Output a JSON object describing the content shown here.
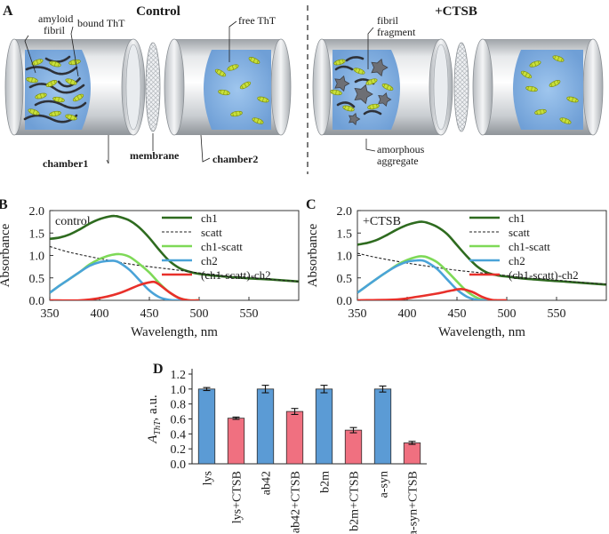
{
  "panelA": {
    "letter": "A",
    "control_title": "Control",
    "ctsb_title": "+CTSB",
    "labels": {
      "amyloid": "amyloid",
      "fibril": "fibril",
      "bound_tht": "bound ThT",
      "free_tht": "free ThT",
      "chamber1": "chamber1",
      "membrane": "membrane",
      "chamber2": "chamber2",
      "fibril2": "fibril",
      "fragment": "fragment",
      "amorphous": "amorphous",
      "aggregate": "aggregate"
    },
    "colors": {
      "liquid": "#8db8e8",
      "tht": "#c8e03a",
      "fibril": "#2e3138",
      "aggregate": "#6d6f75"
    }
  },
  "chart_data": [
    {
      "panel": "B",
      "type": "line",
      "annotation": "control",
      "xlabel": "Wavelength, nm",
      "ylabel": "Absorbance",
      "xlim": [
        350,
        600
      ],
      "ylim": [
        0,
        2.0
      ],
      "xticks": [
        "350",
        "400",
        "450",
        "500",
        "550"
      ],
      "yticks": [
        "0.0",
        "0.5",
        "1.0",
        "1.5",
        "2.0"
      ],
      "legend": [
        "ch1",
        "scatt",
        "ch1-scatt",
        "ch2",
        "(ch1-scatt)-ch2"
      ],
      "series": [
        {
          "name": "ch1",
          "color": "#2e6b1f",
          "x": [
            350,
            360,
            370,
            380,
            390,
            400,
            410,
            415,
            420,
            430,
            440,
            450,
            460,
            470,
            480,
            490,
            500,
            520,
            550,
            575,
            600
          ],
          "y": [
            1.37,
            1.4,
            1.47,
            1.58,
            1.71,
            1.81,
            1.87,
            1.88,
            1.86,
            1.78,
            1.62,
            1.39,
            1.12,
            0.88,
            0.72,
            0.64,
            0.59,
            0.54,
            0.49,
            0.46,
            0.42
          ]
        },
        {
          "name": "scatt",
          "color": "#222222",
          "dashed": true,
          "x": [
            350,
            370,
            400,
            430,
            450,
            480,
            500,
            520,
            550,
            575,
            600
          ],
          "y": [
            1.2,
            1.07,
            0.93,
            0.81,
            0.75,
            0.67,
            0.61,
            0.56,
            0.51,
            0.46,
            0.42
          ]
        },
        {
          "name": "ch1-scatt",
          "color": "#7ed957",
          "x": [
            350,
            360,
            370,
            380,
            390,
            400,
            410,
            420,
            430,
            440,
            450,
            460,
            470,
            480,
            490,
            500
          ],
          "y": [
            0.17,
            0.33,
            0.48,
            0.63,
            0.8,
            0.92,
            1.0,
            1.03,
            0.97,
            0.81,
            0.62,
            0.38,
            0.18,
            0.05,
            0.0,
            0.0
          ]
        },
        {
          "name": "ch2",
          "color": "#4aa3d8",
          "x": [
            350,
            360,
            370,
            380,
            390,
            400,
            410,
            415,
            420,
            430,
            440,
            450,
            460,
            470,
            480,
            490
          ],
          "y": [
            0.17,
            0.33,
            0.48,
            0.63,
            0.77,
            0.85,
            0.88,
            0.88,
            0.84,
            0.68,
            0.45,
            0.22,
            0.07,
            0.01,
            0.0,
            0.0
          ]
        },
        {
          "name": "(ch1-scatt)-ch2",
          "color": "#e8302a",
          "x": [
            350,
            380,
            400,
            420,
            440,
            450,
            455,
            460,
            470,
            480,
            490,
            500
          ],
          "y": [
            0.0,
            0.0,
            0.05,
            0.16,
            0.34,
            0.4,
            0.41,
            0.35,
            0.18,
            0.05,
            0.0,
            0.0
          ]
        }
      ]
    },
    {
      "panel": "C",
      "type": "line",
      "annotation": "+CTSB",
      "xlabel": "Wavelength, nm",
      "ylabel": "Absorbance",
      "xlim": [
        350,
        600
      ],
      "ylim": [
        0,
        2.0
      ],
      "xticks": [
        "350",
        "400",
        "450",
        "500",
        "550"
      ],
      "yticks": [
        "0.0",
        "0.5",
        "1.0",
        "1.5",
        "2.0"
      ],
      "legend": [
        "ch1",
        "scatt",
        "ch1-scatt",
        "ch2",
        "(ch1-scatt)-ch2"
      ],
      "series": [
        {
          "name": "ch1",
          "color": "#2e6b1f",
          "x": [
            350,
            360,
            370,
            380,
            390,
            400,
            410,
            415,
            420,
            430,
            440,
            450,
            460,
            470,
            480,
            490,
            500,
            520,
            550,
            575,
            600
          ],
          "y": [
            1.24,
            1.28,
            1.35,
            1.46,
            1.58,
            1.68,
            1.74,
            1.75,
            1.73,
            1.64,
            1.48,
            1.23,
            0.98,
            0.76,
            0.62,
            0.56,
            0.53,
            0.48,
            0.43,
            0.39,
            0.35
          ]
        },
        {
          "name": "scatt",
          "color": "#222222",
          "dashed": true,
          "x": [
            350,
            370,
            400,
            430,
            450,
            480,
            500,
            520,
            550,
            575,
            600
          ],
          "y": [
            1.05,
            0.95,
            0.83,
            0.73,
            0.67,
            0.6,
            0.55,
            0.5,
            0.45,
            0.4,
            0.36
          ]
        },
        {
          "name": "ch1-scatt",
          "color": "#7ed957",
          "x": [
            350,
            360,
            370,
            380,
            390,
            400,
            410,
            415,
            420,
            430,
            440,
            450,
            460,
            470,
            480,
            490
          ],
          "y": [
            0.17,
            0.33,
            0.49,
            0.64,
            0.79,
            0.9,
            0.97,
            0.98,
            0.96,
            0.85,
            0.65,
            0.42,
            0.2,
            0.06,
            0.0,
            0.0
          ]
        },
        {
          "name": "ch2",
          "color": "#4aa3d8",
          "x": [
            350,
            360,
            370,
            380,
            390,
            400,
            410,
            415,
            420,
            430,
            440,
            450,
            460,
            470,
            480,
            490
          ],
          "y": [
            0.17,
            0.33,
            0.49,
            0.64,
            0.77,
            0.86,
            0.89,
            0.89,
            0.85,
            0.7,
            0.47,
            0.24,
            0.08,
            0.01,
            0.0,
            0.0
          ]
        },
        {
          "name": "(ch1-scatt)-ch2",
          "color": "#e8302a",
          "x": [
            350,
            390,
            410,
            430,
            445,
            455,
            465,
            475,
            485,
            500
          ],
          "y": [
            0.0,
            0.02,
            0.08,
            0.15,
            0.22,
            0.25,
            0.19,
            0.08,
            0.01,
            0.0
          ]
        }
      ]
    },
    {
      "panel": "D",
      "type": "bar",
      "ylabel_main": "A",
      "ylabel_sub": "ThT",
      "ylabel_rest": ", a.u.",
      "ylim": [
        0,
        1.2
      ],
      "yticks": [
        "0.0",
        "0.2",
        "0.4",
        "0.6",
        "0.8",
        "1.0",
        "1.2"
      ],
      "categories": [
        "lys",
        "lys+CTSB",
        "ab42",
        "ab42+CTSB",
        "b2m",
        "b2m+CTSB",
        "a-syn",
        "a-syn+CTSB"
      ],
      "values": [
        1.0,
        0.61,
        1.0,
        0.7,
        1.0,
        0.45,
        1.0,
        0.28
      ],
      "errors": [
        0.02,
        0.015,
        0.05,
        0.04,
        0.05,
        0.035,
        0.04,
        0.02
      ],
      "colors": [
        "#5b9bd5",
        "#f07080",
        "#5b9bd5",
        "#f07080",
        "#5b9bd5",
        "#f07080",
        "#5b9bd5",
        "#f07080"
      ]
    }
  ]
}
